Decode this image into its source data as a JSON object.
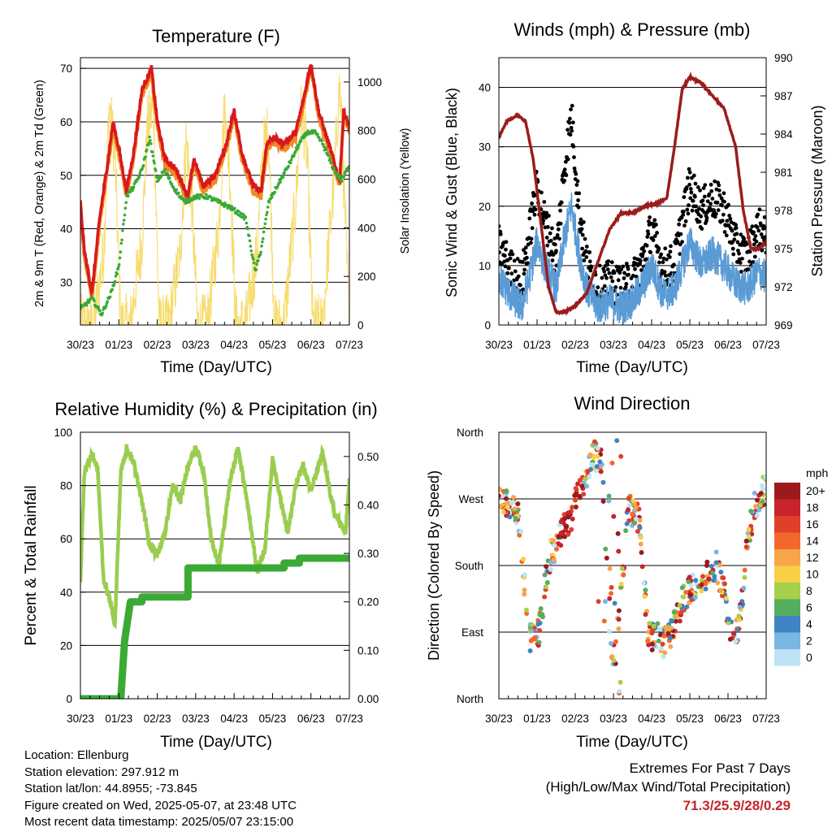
{
  "panels": {
    "temperature": {
      "title": "Temperature (F)",
      "xlabel": "Time (Day/UTC)",
      "ylabel_left": "2m & 9m T (Red, Orange) & 2m Td (Green)",
      "ylabel_right": "Solar Insolation (Yellow)"
    },
    "winds": {
      "title": "Winds (mph) & Pressure (mb)",
      "xlabel": "Time (Day/UTC)",
      "ylabel_left": "Sonic Wind & Gust (Blue, Black)",
      "ylabel_right": "Station Pressure (Maroon)"
    },
    "humidity": {
      "title": "Relative Humidity (%) & Precipitation (in)",
      "xlabel": "Time (Day/UTC)",
      "ylabel_left": "Percent & Total Rainfall"
    },
    "direction": {
      "title": "Wind Direction",
      "xlabel": "Time (Day/UTC)",
      "ylabel_left": "Direction (Colored By Speed)"
    }
  },
  "info": {
    "location": "Location: Ellenburg",
    "elevation": "Station elevation: 297.912 m",
    "latlon": "Station lat/lon: 44.8955; -73.845",
    "created": "Figure created on Wed, 2025-05-07, at 23:48 UTC",
    "recent": "Most recent data timestamp: 2025/05/07 23:15:00"
  },
  "extremes": {
    "line1": "Extremes For Past 7 Days",
    "line2": "(High/Low/Max Wind/Total Precipitation)",
    "values": "71.3/25.9/28/0.29"
  },
  "colors": {
    "temp2m": "#d7191c",
    "temp9m": "#f08a24",
    "dewpoint": "#3aa935",
    "solar": "#f7dc6f",
    "wind": "#5b9bd5",
    "gust": "#000000",
    "pressure": "#9b1c1c",
    "rh": "#9acd4f",
    "precip": "#3aaa35"
  },
  "chart_data": [
    {
      "type": "line",
      "title": "Temperature (F)",
      "xlabel": "Time (Day/UTC)",
      "ylabel": "2m & 9m T (Red, Orange) & 2m Td (Green)",
      "ylabel_right": "Solar Insolation (Yellow)",
      "x_ticks": [
        "30/23",
        "01/23",
        "02/23",
        "03/23",
        "04/23",
        "05/23",
        "06/23",
        "07/23"
      ],
      "ylim": [
        22,
        72
      ],
      "y_ticks": [
        30,
        40,
        50,
        60,
        70
      ],
      "ylim_right": [
        0,
        1100
      ],
      "y_ticks_right": [
        0,
        200,
        400,
        600,
        800,
        1000
      ],
      "series": [
        {
          "name": "2m T",
          "color": "#d7191c",
          "x": [
            0,
            0.1,
            0.3,
            0.5,
            0.7,
            0.85,
            1.0,
            1.2,
            1.4,
            1.6,
            1.85,
            2.0,
            2.2,
            2.5,
            2.8,
            2.95,
            3.2,
            3.5,
            3.8,
            4.0,
            4.2,
            4.5,
            4.7,
            4.85,
            5.0,
            5.3,
            5.6,
            5.8,
            6.0,
            6.2,
            6.5,
            6.75,
            6.85,
            7.0
          ],
          "y": [
            45,
            36,
            28,
            42,
            52,
            60,
            55,
            47,
            55,
            66,
            70,
            60,
            53,
            51,
            46,
            53,
            48,
            50,
            56,
            62,
            54,
            48,
            47,
            56,
            57,
            56,
            58,
            64,
            71,
            62,
            55,
            49,
            62,
            59
          ]
        },
        {
          "name": "9m T",
          "color": "#f08a24",
          "x": [
            0,
            0.1,
            0.3,
            0.5,
            0.7,
            0.85,
            1.0,
            1.2,
            1.4,
            1.6,
            1.85,
            2.0,
            2.2,
            2.5,
            2.8,
            2.95,
            3.2,
            3.5,
            3.8,
            4.0,
            4.2,
            4.5,
            4.7,
            4.85,
            5.0,
            5.3,
            5.6,
            5.8,
            6.0,
            6.2,
            6.5,
            6.75,
            6.85,
            7.0
          ],
          "y": [
            44,
            35,
            27,
            41,
            51,
            59,
            54,
            46,
            54,
            65,
            69,
            59,
            52,
            50,
            45,
            52,
            47,
            49,
            55,
            61,
            53,
            47,
            46,
            55,
            56,
            55,
            57,
            63,
            70,
            61,
            54,
            48,
            61,
            58
          ]
        },
        {
          "name": "2m Td",
          "color": "#3aa935",
          "x": [
            0,
            0.3,
            0.55,
            0.8,
            1.0,
            1.2,
            1.4,
            1.6,
            1.8,
            2.0,
            2.2,
            2.4,
            2.7,
            3.0,
            3.3,
            3.6,
            3.9,
            4.1,
            4.3,
            4.55,
            4.7,
            4.9,
            5.2,
            5.5,
            5.7,
            5.9,
            6.1,
            6.3,
            6.6,
            6.8,
            7.0
          ],
          "y": [
            25,
            27,
            24,
            28,
            33,
            46,
            48,
            51,
            57,
            49,
            51,
            48,
            45,
            46,
            46,
            45,
            44,
            43,
            42,
            32,
            36,
            45,
            49,
            53,
            56,
            58,
            58,
            56,
            51,
            49,
            52
          ]
        },
        {
          "name": "Solar Insolation",
          "color": "#f7dc6f",
          "axis": "right",
          "x": [
            0,
            0.35,
            0.6,
            0.75,
            0.9,
            1.05,
            1.3,
            1.6,
            1.75,
            1.9,
            2.05,
            2.3,
            2.6,
            2.75,
            2.9,
            3.05,
            3.3,
            3.6,
            3.75,
            3.9,
            4.05,
            4.3,
            4.6,
            4.75,
            4.9,
            5.05,
            5.3,
            5.6,
            5.75,
            5.9,
            6.05,
            6.3,
            6.6,
            6.75,
            6.9,
            7.0
          ],
          "y": [
            0,
            0,
            300,
            900,
            700,
            0,
            0,
            350,
            820,
            900,
            0,
            0,
            300,
            760,
            500,
            0,
            0,
            400,
            900,
            600,
            0,
            0,
            300,
            720,
            800,
            0,
            0,
            500,
            900,
            700,
            0,
            0,
            600,
            1000,
            400,
            0
          ]
        }
      ]
    },
    {
      "type": "scatter",
      "title": "Winds (mph) & Pressure (mb)",
      "xlabel": "Time (Day/UTC)",
      "ylabel": "Sonic Wind & Gust (Blue, Black)",
      "ylabel_right": "Station Pressure (Maroon)",
      "x_ticks": [
        "30/23",
        "01/23",
        "02/23",
        "03/23",
        "04/23",
        "05/23",
        "06/23",
        "07/23"
      ],
      "ylim": [
        0,
        45
      ],
      "y_ticks": [
        0,
        10,
        20,
        30,
        40
      ],
      "ylim_right": [
        969,
        990
      ],
      "y_ticks_right": [
        969,
        972,
        975,
        978,
        981,
        984,
        987,
        990
      ],
      "series": [
        {
          "name": "Sonic Wind",
          "color": "#5b9bd5",
          "x": [
            0,
            0.3,
            0.6,
            0.8,
            1.0,
            1.2,
            1.5,
            1.7,
            1.9,
            2.1,
            2.3,
            2.6,
            2.9,
            3.2,
            3.5,
            3.8,
            4.0,
            4.3,
            4.6,
            4.8,
            5.0,
            5.3,
            5.6,
            5.9,
            6.2,
            6.5,
            6.8,
            7.0
          ],
          "y": [
            8,
            5,
            3,
            8,
            14,
            10,
            6,
            14,
            20,
            12,
            6,
            3,
            4,
            3,
            4,
            7,
            10,
            5,
            6,
            10,
            14,
            10,
            12,
            10,
            7,
            6,
            9,
            8
          ]
        },
        {
          "name": "Gust",
          "color": "#000000",
          "x": [
            0,
            0.3,
            0.6,
            0.8,
            1.0,
            1.2,
            1.5,
            1.7,
            1.9,
            2.1,
            2.3,
            2.6,
            2.9,
            3.2,
            3.5,
            3.8,
            4.0,
            4.3,
            4.6,
            4.8,
            5.0,
            5.3,
            5.6,
            5.9,
            6.2,
            6.5,
            6.8,
            7.0
          ],
          "y": [
            12,
            8,
            6,
            14,
            22,
            16,
            10,
            24,
            34,
            18,
            9,
            5,
            6,
            5,
            6,
            10,
            15,
            8,
            9,
            16,
            22,
            18,
            20,
            18,
            12,
            10,
            15,
            13
          ]
        },
        {
          "name": "Station Pressure",
          "color": "#9b1c1c",
          "axis": "right",
          "x": [
            0,
            0.2,
            0.5,
            0.7,
            0.9,
            1.1,
            1.3,
            1.5,
            1.7,
            2.0,
            2.3,
            2.6,
            2.9,
            3.2,
            3.5,
            3.8,
            4.1,
            4.4,
            4.6,
            4.8,
            5.0,
            5.3,
            5.6,
            5.9,
            6.2,
            6.4,
            6.6,
            6.8,
            7.0
          ],
          "y": [
            983.7,
            985,
            985.5,
            985,
            982,
            977,
            972,
            970,
            970,
            970.5,
            971.5,
            974,
            976.5,
            977.8,
            977.8,
            978.3,
            978.5,
            979,
            983,
            987.5,
            988.5,
            988,
            987,
            986,
            983,
            978,
            975,
            975,
            975.5
          ]
        }
      ]
    },
    {
      "type": "line",
      "title": "Relative Humidity (%) & Precipitation (in)",
      "xlabel": "Time (Day/UTC)",
      "ylabel": "Percent & Total Rainfall",
      "x_ticks": [
        "30/23",
        "01/23",
        "02/23",
        "03/23",
        "04/23",
        "05/23",
        "06/23",
        "07/23"
      ],
      "ylim": [
        0,
        100
      ],
      "y_ticks": [
        0,
        20,
        40,
        60,
        80,
        100
      ],
      "ylim_right": [
        0,
        0.55
      ],
      "y_ticks_right": [
        "0.00",
        "0.10",
        "0.20",
        "0.30",
        "0.40",
        "0.50"
      ],
      "series": [
        {
          "name": "Relative Humidity",
          "color": "#9acd4f",
          "x": [
            0,
            0.1,
            0.3,
            0.45,
            0.6,
            0.75,
            0.9,
            1.05,
            1.2,
            1.4,
            1.6,
            1.8,
            2.0,
            2.2,
            2.4,
            2.6,
            2.8,
            3.0,
            3.2,
            3.4,
            3.6,
            3.9,
            4.1,
            4.3,
            4.6,
            4.8,
            5.0,
            5.2,
            5.4,
            5.6,
            5.8,
            6.0,
            6.3,
            6.6,
            6.9,
            7.0
          ],
          "y": [
            44,
            85,
            92,
            86,
            45,
            38,
            28,
            85,
            94,
            88,
            74,
            58,
            54,
            62,
            80,
            74,
            88,
            94,
            86,
            60,
            50,
            82,
            94,
            78,
            48,
            56,
            90,
            75,
            62,
            80,
            88,
            78,
            92,
            70,
            62,
            82
          ]
        },
        {
          "name": "Total Rainfall",
          "color": "#3aaa35",
          "axis": "right",
          "x": [
            0,
            0.5,
            1.05,
            1.15,
            1.3,
            1.6,
            2.0,
            2.5,
            2.75,
            2.8,
            3.0,
            3.5,
            4.0,
            4.5,
            5.0,
            5.3,
            5.7,
            6.0,
            6.5,
            7.0
          ],
          "y": [
            0,
            0,
            0,
            0.12,
            0.2,
            0.21,
            0.21,
            0.21,
            0.21,
            0.27,
            0.27,
            0.27,
            0.27,
            0.27,
            0.27,
            0.28,
            0.29,
            0.29,
            0.29,
            0.29
          ]
        }
      ]
    },
    {
      "type": "scatter",
      "title": "Wind Direction",
      "xlabel": "Time (Day/UTC)",
      "ylabel": "Direction (Colored By Speed)",
      "x_ticks": [
        "30/23",
        "01/23",
        "02/23",
        "03/23",
        "04/23",
        "05/23",
        "06/23",
        "07/23"
      ],
      "y_ticks": [
        "North",
        "East",
        "South",
        "West",
        "North"
      ],
      "ylim": [
        0,
        360
      ],
      "legend_title": "mph",
      "legend_labels": [
        "20+",
        "18",
        "16",
        "14",
        "12",
        "10",
        "8",
        "6",
        "4",
        "2",
        "0"
      ],
      "series": [
        {
          "name": "Wind Direction",
          "x": [
            0.1,
            0.3,
            0.5,
            0.8,
            0.95,
            1.05,
            1.3,
            1.5,
            1.7,
            1.9,
            2.1,
            2.3,
            2.5,
            2.7,
            2.9,
            3.1,
            3.4,
            3.7,
            3.9,
            4.1,
            4.3,
            4.5,
            4.7,
            4.9,
            5.1,
            5.3,
            5.5,
            5.7,
            5.9,
            6.1,
            6.3,
            6.5,
            6.7,
            6.9
          ],
          "y": [
            270,
            255,
            250,
            85,
            80,
            90,
            185,
            210,
            235,
            245,
            280,
            300,
            330,
            320,
            70,
            90,
            260,
            240,
            80,
            90,
            75,
            85,
            120,
            140,
            150,
            160,
            170,
            180,
            140,
            90,
            100,
            210,
            260,
            280
          ]
        }
      ]
    }
  ]
}
